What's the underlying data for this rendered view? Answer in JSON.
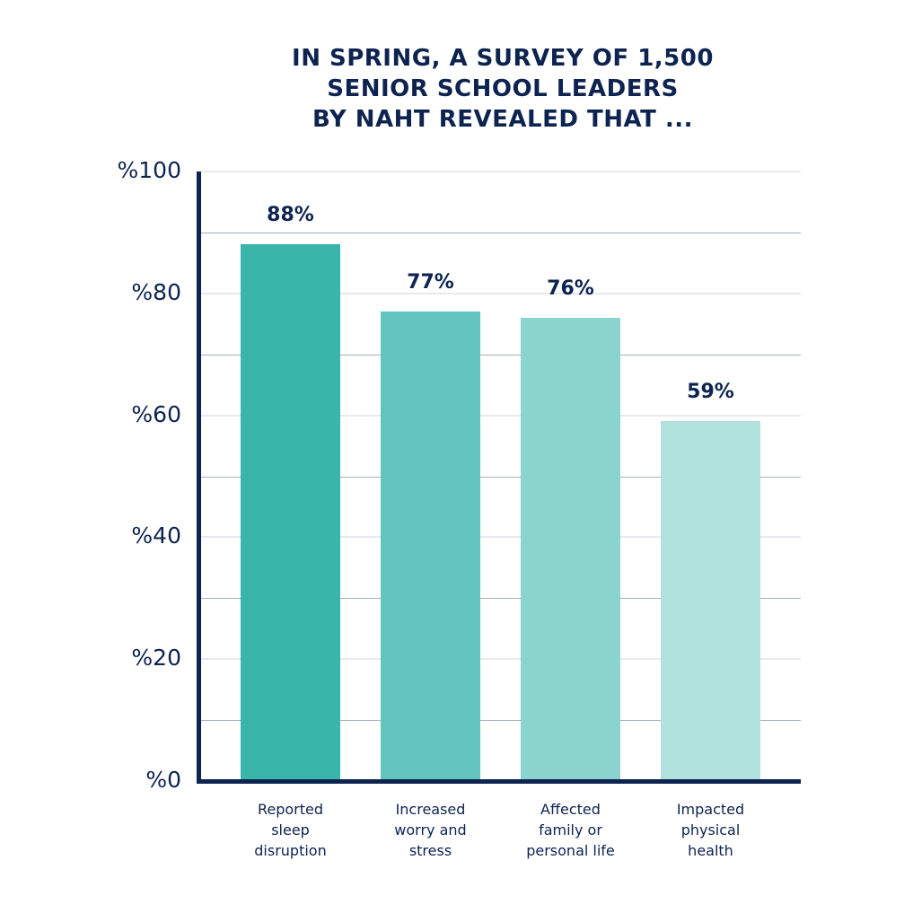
{
  "chart_data": {
    "type": "bar",
    "title": "IN SPRING, A SURVEY OF 1,500 SENIOR SCHOOL LEADERS BY NAHT REVEALED THAT ...",
    "title_lines": [
      "IN SPRING, A SURVEY OF 1,500",
      "SENIOR SCHOOL LEADERS",
      "BY NAHT REVEALED THAT ..."
    ],
    "categories": [
      "Reported sleep disruption",
      "Increased worry and stress",
      "Affected family or personal life",
      "Impacted physical health"
    ],
    "category_lines": [
      [
        "Reported",
        "sleep",
        "disruption"
      ],
      [
        "Increased",
        "worry and",
        "stress"
      ],
      [
        "Affected",
        "family or",
        "personal life"
      ],
      [
        "Impacted",
        "physical",
        "health"
      ]
    ],
    "values": [
      88,
      77,
      76,
      59
    ],
    "value_labels": [
      "88%",
      "77%",
      "76%",
      "59%"
    ],
    "bar_colors": [
      "#3ab5aa",
      "#62c4bc",
      "#8bd3cd",
      "#b0e1dd"
    ],
    "xlabel": "",
    "ylabel": "",
    "ylim": [
      0,
      100
    ],
    "yticks": [
      0,
      20,
      40,
      60,
      80,
      100
    ],
    "ytick_labels": [
      "%0",
      "%20",
      "%40",
      "%60",
      "%80",
      "%100"
    ],
    "grid": true,
    "legend": null
  },
  "colors": {
    "text": "#0d2350",
    "axis": "#0d2350",
    "grid_major": "#e8e8ee",
    "grid_minor": "#a9afb7"
  }
}
